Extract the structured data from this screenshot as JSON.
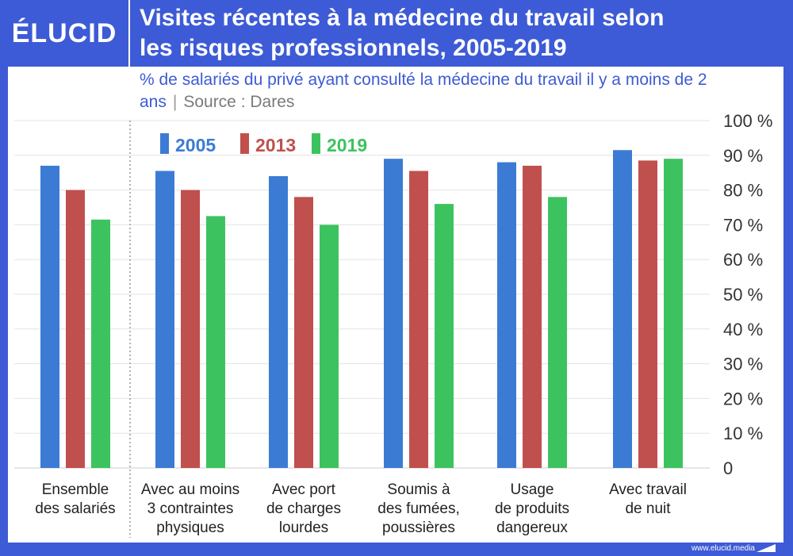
{
  "brand": {
    "logo": "ÉLUCID",
    "url": "www.elucid.media"
  },
  "header": {
    "title_line1": "Visites récentes à la médecine du travail selon",
    "title_line2": "les risques professionnels, 2005-2019"
  },
  "subtitle": {
    "text": "% de salariés du privé ayant consulté la médecine du travail il y a moins de 2 ans",
    "source": "Source : Dares"
  },
  "colors": {
    "frame": "#3d5bd6",
    "s2005": "#3b7bd4",
    "s2013": "#c0504d",
    "s2019": "#3cc35f"
  },
  "chart_data": {
    "type": "bar",
    "categories": [
      [
        "Ensemble",
        "des salariés"
      ],
      [
        "Avec au moins",
        "3 contraintes",
        "physiques"
      ],
      [
        "Avec port",
        "de charges",
        "lourdes"
      ],
      [
        "Soumis à",
        "des fumées,",
        "poussières"
      ],
      [
        "Usage",
        "de produits",
        "dangereux"
      ],
      [
        "Avec travail",
        "de nuit"
      ]
    ],
    "series": [
      {
        "name": "2005",
        "color": "#3b7bd4",
        "values": [
          87,
          85.5,
          84,
          89,
          88,
          91.5
        ]
      },
      {
        "name": "2013",
        "color": "#c0504d",
        "values": [
          80,
          80,
          78,
          85.5,
          87,
          88.5
        ]
      },
      {
        "name": "2019",
        "color": "#3cc35f",
        "values": [
          71.5,
          72.5,
          70,
          76,
          78,
          89
        ]
      }
    ],
    "ylim": [
      0,
      100
    ],
    "yticks": [
      "0",
      "10 %",
      "20 %",
      "30 %",
      "40 %",
      "50 %",
      "60 %",
      "70 %",
      "80 %",
      "90 %",
      "100 %"
    ],
    "grid": true,
    "legend": "top-left",
    "separator_after_first_category": true
  }
}
